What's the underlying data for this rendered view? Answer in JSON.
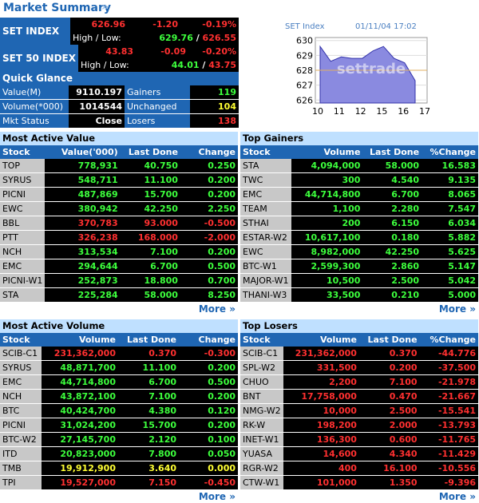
{
  "header": {
    "title": "Market Summary",
    "chevron": "»"
  },
  "set_index": {
    "name": "SET INDEX",
    "value": "626.96",
    "change": "-1.20",
    "pct": "-0.19%",
    "hl_label": "High / Low:",
    "high": "629.76",
    "sep": " / ",
    "low": "626.55"
  },
  "set50": {
    "name": "SET 50 INDEX",
    "value": "43.83",
    "change": "-0.09",
    "pct": "-0.20%",
    "hl_label": "High / Low:",
    "high": "44.01",
    "sep": " / ",
    "low": "43.75"
  },
  "quick_glance": {
    "title": "Quick Glance",
    "rows": [
      {
        "l1": "Value(M)",
        "v1": "9110.197",
        "l2": "Gainers",
        "v2": "119",
        "c2": "#3dff3d"
      },
      {
        "l1": "Volume(*000)",
        "v1": "1014544",
        "l2": "Unchanged",
        "v2": "104",
        "c2": "#ffff33"
      },
      {
        "l1": "Mkt Status",
        "v1": "Close",
        "l2": "Losers",
        "v2": "138",
        "c2": "#ff3030"
      }
    ]
  },
  "chart": {
    "title": "SET Index",
    "datetime": "01/11/04 17:02",
    "watermark": "settrade",
    "y_ticks": [
      "630",
      "629",
      "628",
      "627",
      "626"
    ],
    "x_ticks": [
      "10",
      "11",
      "12",
      "15",
      "16",
      "17"
    ]
  },
  "chart_data": {
    "type": "area",
    "title": "SET Index",
    "x": [
      "10",
      "10.5",
      "11",
      "11.5",
      "12",
      "12.5",
      "15",
      "15.5",
      "16",
      "16.5"
    ],
    "values": [
      629.6,
      628.6,
      628.9,
      628.8,
      628.8,
      629.3,
      629.6,
      628.8,
      628.5,
      627.3
    ],
    "ylim": [
      625.8,
      630.2
    ],
    "reference_line": 628.0
  },
  "colors": {
    "up": "#3dff3d",
    "down": "#ff3030",
    "unch": "#ffff33",
    "brand": "#1f66b3",
    "section": "#bfe0ff"
  },
  "more_label": "More »",
  "most_active_value": {
    "title": "Most Active Value",
    "headers": [
      "Stock",
      "Value('000)",
      "Last Done",
      "Change"
    ],
    "rows": [
      {
        "stock": "TOP",
        "v1": "778,931",
        "v2": "40.750",
        "v3": "0.250",
        "c": "up"
      },
      {
        "stock": "SYRUS",
        "v1": "548,711",
        "v2": "11.100",
        "v3": "0.200",
        "c": "up"
      },
      {
        "stock": "PICNI",
        "v1": "487,869",
        "v2": "15.700",
        "v3": "0.200",
        "c": "up"
      },
      {
        "stock": "EWC",
        "v1": "380,942",
        "v2": "42.250",
        "v3": "2.250",
        "c": "up"
      },
      {
        "stock": "BBL",
        "v1": "370,783",
        "v2": "93.000",
        "v3": "-0.500",
        "c": "down"
      },
      {
        "stock": "PTT",
        "v1": "326,238",
        "v2": "168.000",
        "v3": "-2.000",
        "c": "down"
      },
      {
        "stock": "NCH",
        "v1": "313,534",
        "v2": "7.100",
        "v3": "0.200",
        "c": "up"
      },
      {
        "stock": "EMC",
        "v1": "294,644",
        "v2": "6.700",
        "v3": "0.500",
        "c": "up"
      },
      {
        "stock": "PICNI-W1",
        "v1": "252,873",
        "v2": "18.800",
        "v3": "0.700",
        "c": "up"
      },
      {
        "stock": "STA",
        "v1": "225,284",
        "v2": "58.000",
        "v3": "8.250",
        "c": "up"
      }
    ]
  },
  "top_gainers": {
    "title": "Top Gainers",
    "headers": [
      "Stock",
      "Volume",
      "Last Done",
      "%Change"
    ],
    "rows": [
      {
        "stock": "STA",
        "v1": "4,094,000",
        "v2": "58.000",
        "v3": "16.583",
        "c": "up"
      },
      {
        "stock": "TWC",
        "v1": "300",
        "v2": "4.540",
        "v3": "9.135",
        "c": "up"
      },
      {
        "stock": "EMC",
        "v1": "44,714,800",
        "v2": "6.700",
        "v3": "8.065",
        "c": "up"
      },
      {
        "stock": "TEAM",
        "v1": "1,100",
        "v2": "2.280",
        "v3": "7.547",
        "c": "up"
      },
      {
        "stock": "STHAI",
        "v1": "200",
        "v2": "6.150",
        "v3": "6.034",
        "c": "up"
      },
      {
        "stock": "ESTAR-W2",
        "v1": "10,617,100",
        "v2": "0.180",
        "v3": "5.882",
        "c": "up"
      },
      {
        "stock": "EWC",
        "v1": "8,982,000",
        "v2": "42.250",
        "v3": "5.625",
        "c": "up"
      },
      {
        "stock": "BTC-W1",
        "v1": "2,599,300",
        "v2": "2.860",
        "v3": "5.147",
        "c": "up"
      },
      {
        "stock": "MAJOR-W1",
        "v1": "10,500",
        "v2": "2.500",
        "v3": "5.042",
        "c": "up"
      },
      {
        "stock": "THANI-W3",
        "v1": "33,500",
        "v2": "0.210",
        "v3": "5.000",
        "c": "up"
      }
    ]
  },
  "most_active_volume": {
    "title": "Most Active Volume",
    "headers": [
      "Stock",
      "Volume",
      "Last Done",
      "Change"
    ],
    "rows": [
      {
        "stock": "SCIB-C1",
        "v1": "231,362,000",
        "v2": "0.370",
        "v3": "-0.300",
        "c": "down"
      },
      {
        "stock": "SYRUS",
        "v1": "48,871,700",
        "v2": "11.100",
        "v3": "0.200",
        "c": "up"
      },
      {
        "stock": "EMC",
        "v1": "44,714,800",
        "v2": "6.700",
        "v3": "0.500",
        "c": "up"
      },
      {
        "stock": "NCH",
        "v1": "43,872,100",
        "v2": "7.100",
        "v3": "0.200",
        "c": "up"
      },
      {
        "stock": "BTC",
        "v1": "40,424,700",
        "v2": "4.380",
        "v3": "0.120",
        "c": "up"
      },
      {
        "stock": "PICNI",
        "v1": "31,024,200",
        "v2": "15.700",
        "v3": "0.200",
        "c": "up"
      },
      {
        "stock": "BTC-W2",
        "v1": "27,145,700",
        "v2": "2.120",
        "v3": "0.100",
        "c": "up"
      },
      {
        "stock": "ITD",
        "v1": "20,823,000",
        "v2": "7.800",
        "v3": "0.050",
        "c": "up"
      },
      {
        "stock": "TMB",
        "v1": "19,912,900",
        "v2": "3.640",
        "v3": "0.000",
        "c": "unch"
      },
      {
        "stock": "TPI",
        "v1": "19,527,000",
        "v2": "7.150",
        "v3": "-0.450",
        "c": "down"
      }
    ]
  },
  "top_losers": {
    "title": "Top Losers",
    "headers": [
      "Stock",
      "Volume",
      "Last Done",
      "%Change"
    ],
    "rows": [
      {
        "stock": "SCIB-C1",
        "v1": "231,362,000",
        "v2": "0.370",
        "v3": "-44.776",
        "c": "down"
      },
      {
        "stock": "SPL-W2",
        "v1": "331,500",
        "v2": "0.200",
        "v3": "-37.500",
        "c": "down"
      },
      {
        "stock": "CHUO",
        "v1": "2,200",
        "v2": "7.100",
        "v3": "-21.978",
        "c": "down"
      },
      {
        "stock": "BNT",
        "v1": "17,758,000",
        "v2": "0.470",
        "v3": "-21.667",
        "c": "down"
      },
      {
        "stock": "NMG-W2",
        "v1": "10,000",
        "v2": "2.500",
        "v3": "-15.541",
        "c": "down"
      },
      {
        "stock": "RK-W",
        "v1": "198,200",
        "v2": "2.000",
        "v3": "-13.793",
        "c": "down"
      },
      {
        "stock": "INET-W1",
        "v1": "136,300",
        "v2": "0.600",
        "v3": "-11.765",
        "c": "down"
      },
      {
        "stock": "YUASA",
        "v1": "14,600",
        "v2": "4.340",
        "v3": "-11.429",
        "c": "down"
      },
      {
        "stock": "RGR-W2",
        "v1": "400",
        "v2": "16.100",
        "v3": "-10.556",
        "c": "down"
      },
      {
        "stock": "CTW-W1",
        "v1": "101,000",
        "v2": "1.350",
        "v3": "-9.396",
        "c": "down"
      }
    ]
  }
}
